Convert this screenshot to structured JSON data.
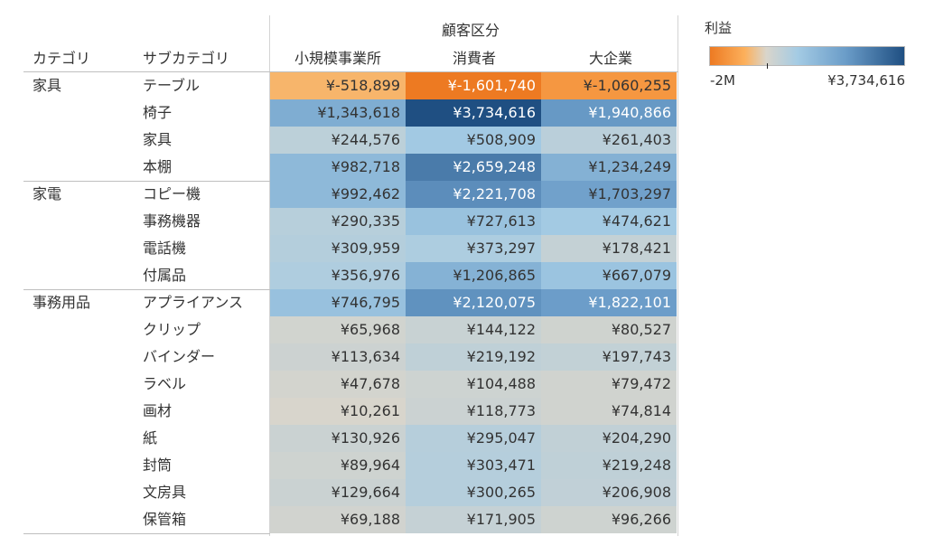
{
  "chart_data": {
    "type": "heatmap",
    "title": "",
    "column_group_header": "顧客区分",
    "row_headers": [
      "カテゴリ",
      "サブカテゴリ"
    ],
    "columns": [
      "小規模事業所",
      "消費者",
      "大企業"
    ],
    "categories": [
      {
        "name": "家具",
        "rows": [
          {
            "sub": "テーブル",
            "values": [
              -518899,
              -1601740,
              -1060255
            ],
            "labels": [
              "¥-518,899",
              "¥-1,601,740",
              "¥-1,060,255"
            ]
          },
          {
            "sub": "椅子",
            "values": [
              1343618,
              3734616,
              1940866
            ],
            "labels": [
              "¥1,343,618",
              "¥3,734,616",
              "¥1,940,866"
            ]
          },
          {
            "sub": "家具",
            "values": [
              244576,
              508909,
              261403
            ],
            "labels": [
              "¥244,576",
              "¥508,909",
              "¥261,403"
            ]
          },
          {
            "sub": "本棚",
            "values": [
              982718,
              2659248,
              1234249
            ],
            "labels": [
              "¥982,718",
              "¥2,659,248",
              "¥1,234,249"
            ]
          }
        ]
      },
      {
        "name": "家電",
        "rows": [
          {
            "sub": "コピー機",
            "values": [
              992462,
              2221708,
              1703297
            ],
            "labels": [
              "¥992,462",
              "¥2,221,708",
              "¥1,703,297"
            ]
          },
          {
            "sub": "事務機器",
            "values": [
              290335,
              727613,
              474621
            ],
            "labels": [
              "¥290,335",
              "¥727,613",
              "¥474,621"
            ]
          },
          {
            "sub": "電話機",
            "values": [
              309959,
              373297,
              178421
            ],
            "labels": [
              "¥309,959",
              "¥373,297",
              "¥178,421"
            ]
          },
          {
            "sub": "付属品",
            "values": [
              356976,
              1206865,
              667079
            ],
            "labels": [
              "¥356,976",
              "¥1,206,865",
              "¥667,079"
            ]
          }
        ]
      },
      {
        "name": "事務用品",
        "rows": [
          {
            "sub": "アプライアンス",
            "values": [
              746795,
              2120075,
              1822101
            ],
            "labels": [
              "¥746,795",
              "¥2,120,075",
              "¥1,822,101"
            ]
          },
          {
            "sub": "クリップ",
            "values": [
              65968,
              144122,
              80527
            ],
            "labels": [
              "¥65,968",
              "¥144,122",
              "¥80,527"
            ]
          },
          {
            "sub": "バインダー",
            "values": [
              113634,
              219192,
              197743
            ],
            "labels": [
              "¥113,634",
              "¥219,192",
              "¥197,743"
            ]
          },
          {
            "sub": "ラベル",
            "values": [
              47678,
              104488,
              79472
            ],
            "labels": [
              "¥47,678",
              "¥104,488",
              "¥79,472"
            ]
          },
          {
            "sub": "画材",
            "values": [
              10261,
              118773,
              74814
            ],
            "labels": [
              "¥10,261",
              "¥118,773",
              "¥74,814"
            ]
          },
          {
            "sub": "紙",
            "values": [
              130926,
              295047,
              204290
            ],
            "labels": [
              "¥130,926",
              "¥295,047",
              "¥204,290"
            ]
          },
          {
            "sub": "封筒",
            "values": [
              89964,
              303471,
              219248
            ],
            "labels": [
              "¥89,964",
              "¥303,471",
              "¥219,248"
            ]
          },
          {
            "sub": "文房具",
            "values": [
              129664,
              300265,
              206908
            ],
            "labels": [
              "¥129,664",
              "¥300,265",
              "¥206,908"
            ]
          },
          {
            "sub": "保管箱",
            "values": [
              69188,
              171905,
              96266
            ],
            "labels": [
              "¥69,188",
              "¥171,905",
              "¥96,266"
            ]
          }
        ]
      }
    ],
    "legend": {
      "title": "利益",
      "min_label": "-2M",
      "max_label": "¥3,734,616",
      "min_value": -2000000,
      "max_value": 3734616,
      "placement": "top-right",
      "colors": {
        "neg_strong": "#ed7a22",
        "neg_light": "#fcb05c",
        "mid": "#d9d5cb",
        "pos_light": "#a4cbe4",
        "pos_mid": "#6a9cc8",
        "pos_strong": "#1f4f82"
      }
    }
  }
}
